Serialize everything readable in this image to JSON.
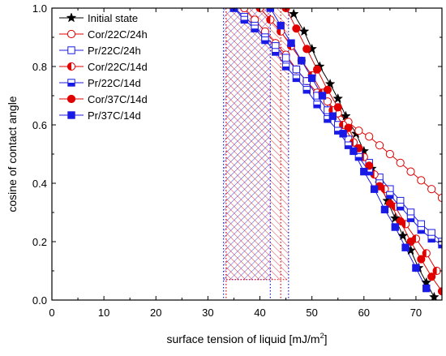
{
  "chart_data": {
    "type": "scatter",
    "xlabel": "surface tension of liquid [mJ/m",
    "xlabel_sup": "2",
    "xlabel_end": "]",
    "ylabel": "cosine of contact angle",
    "xlim": [
      0,
      75
    ],
    "ylim": [
      0.0,
      1.0
    ],
    "x_ticks": [
      0,
      10,
      20,
      30,
      40,
      50,
      60,
      70
    ],
    "y_ticks": [
      0.0,
      0.2,
      0.4,
      0.6,
      0.8,
      1.0
    ],
    "y_tick_labels": [
      "0.0",
      "0.2",
      "0.4",
      "0.6",
      "0.8",
      "1.0"
    ],
    "grid": false,
    "legend_position": "top-left",
    "series": [
      {
        "name": "Initial state",
        "color": "#000000",
        "marker": "star",
        "fill": "full",
        "x": [
          46.5,
          48.5,
          50.0,
          51.5,
          53.5,
          55.0,
          56.5,
          58.5,
          60.0,
          61.5,
          63.0,
          64.5,
          66.0,
          67.5,
          69.0,
          70.5,
          72.0,
          73.5
        ],
        "y": [
          0.98,
          0.92,
          0.86,
          0.8,
          0.74,
          0.69,
          0.63,
          0.57,
          0.51,
          0.45,
          0.4,
          0.34,
          0.28,
          0.22,
          0.17,
          0.11,
          0.06,
          0.01
        ]
      },
      {
        "name": "Cor/22C/24h",
        "color": "#e00000",
        "marker": "circle",
        "fill": "none",
        "x": [
          37.0,
          39.0,
          41.0,
          43.0,
          45.0,
          47.0,
          49.0,
          51.0,
          53.0,
          55.0,
          57.0,
          59.0,
          61.0,
          63.0,
          65.0,
          67.0,
          69.0,
          71.0,
          73.0,
          75.0
        ],
        "y": [
          1.0,
          0.96,
          0.92,
          0.88,
          0.84,
          0.79,
          0.75,
          0.71,
          0.68,
          0.64,
          0.61,
          0.58,
          0.56,
          0.53,
          0.5,
          0.47,
          0.44,
          0.41,
          0.38,
          0.35
        ]
      },
      {
        "name": "Pr/22C/24h",
        "color": "#1a1ae6",
        "marker": "square",
        "fill": "none",
        "x": [
          35.0,
          37.0,
          39.0,
          41.0,
          43.0,
          45.0,
          47.0,
          49.0,
          51.0,
          53.0,
          55.0,
          57.0,
          59.0,
          61.0,
          63.0,
          65.0,
          67.0,
          69.0,
          71.0,
          73.0,
          75.0
        ],
        "y": [
          1.0,
          0.97,
          0.94,
          0.9,
          0.87,
          0.83,
          0.79,
          0.75,
          0.7,
          0.65,
          0.6,
          0.55,
          0.51,
          0.47,
          0.42,
          0.38,
          0.34,
          0.3,
          0.26,
          0.23,
          0.2
        ]
      },
      {
        "name": "Cor/22C/14d",
        "color": "#e00000",
        "marker": "circle",
        "fill": "half",
        "x": [
          40.0,
          42.0,
          44.0,
          46.0,
          48.0,
          50.0,
          52.0,
          54.0,
          56.0,
          58.0,
          60.0,
          62.0,
          64.0,
          66.0,
          68.0,
          70.0,
          72.0,
          74.0
        ],
        "y": [
          1.0,
          0.96,
          0.92,
          0.87,
          0.82,
          0.77,
          0.71,
          0.65,
          0.6,
          0.54,
          0.49,
          0.43,
          0.38,
          0.32,
          0.26,
          0.21,
          0.16,
          0.1
        ]
      },
      {
        "name": "Pr/22C/14d",
        "color": "#1a1ae6",
        "marker": "square",
        "fill": "half",
        "x": [
          35.0,
          37.0,
          39.0,
          41.0,
          43.0,
          45.0,
          47.0,
          49.0,
          51.0,
          53.0,
          55.0,
          57.0,
          59.0,
          61.0,
          63.0,
          65.0,
          67.0,
          69.0,
          71.0,
          73.0,
          75.0
        ],
        "y": [
          1.0,
          0.96,
          0.93,
          0.89,
          0.85,
          0.8,
          0.76,
          0.72,
          0.67,
          0.62,
          0.58,
          0.53,
          0.49,
          0.44,
          0.4,
          0.36,
          0.32,
          0.28,
          0.24,
          0.21,
          0.19
        ]
      },
      {
        "name": "Cor/37C/14d",
        "color": "#e00000",
        "marker": "circle",
        "fill": "full",
        "x": [
          45.0,
          47.0,
          49.0,
          51.0,
          53.0,
          55.0,
          57.0,
          59.0,
          61.0,
          63.0,
          65.0,
          67.0,
          69.0,
          71.0,
          73.0,
          75.0
        ],
        "y": [
          1.0,
          0.93,
          0.86,
          0.79,
          0.72,
          0.66,
          0.59,
          0.52,
          0.46,
          0.39,
          0.33,
          0.27,
          0.2,
          0.14,
          0.08,
          0.03
        ]
      },
      {
        "name": "Pr/37C/14d",
        "color": "#1a1ae6",
        "marker": "square",
        "fill": "full",
        "x": [
          42.0,
          44.0,
          46.0,
          48.0,
          50.0,
          52.0,
          54.0,
          56.0,
          58.0,
          60.0,
          62.0,
          64.0,
          66.0,
          68.0,
          70.0,
          72.0
        ],
        "y": [
          1.0,
          0.94,
          0.88,
          0.82,
          0.76,
          0.7,
          0.63,
          0.57,
          0.51,
          0.44,
          0.38,
          0.31,
          0.25,
          0.18,
          0.11,
          0.04
        ]
      }
    ],
    "hatched_regions": [
      {
        "color": "#1a1ae6",
        "x_range": [
          33.0,
          42.0
        ],
        "y_range": [
          0.07,
          1.0
        ]
      },
      {
        "color": "#e00000",
        "x_range": [
          33.5,
          45.5
        ],
        "y_range": [
          0.07,
          1.0
        ]
      }
    ],
    "vertical_dotted_lines": [
      {
        "x": 33.0,
        "color": "#1a1ae6"
      },
      {
        "x": 33.5,
        "color": "#e00000"
      },
      {
        "x": 42.0,
        "color": "#1a1ae6"
      },
      {
        "x": 44.0,
        "color": "#e00000"
      },
      {
        "x": 45.5,
        "color": "#1a1ae6"
      }
    ]
  }
}
